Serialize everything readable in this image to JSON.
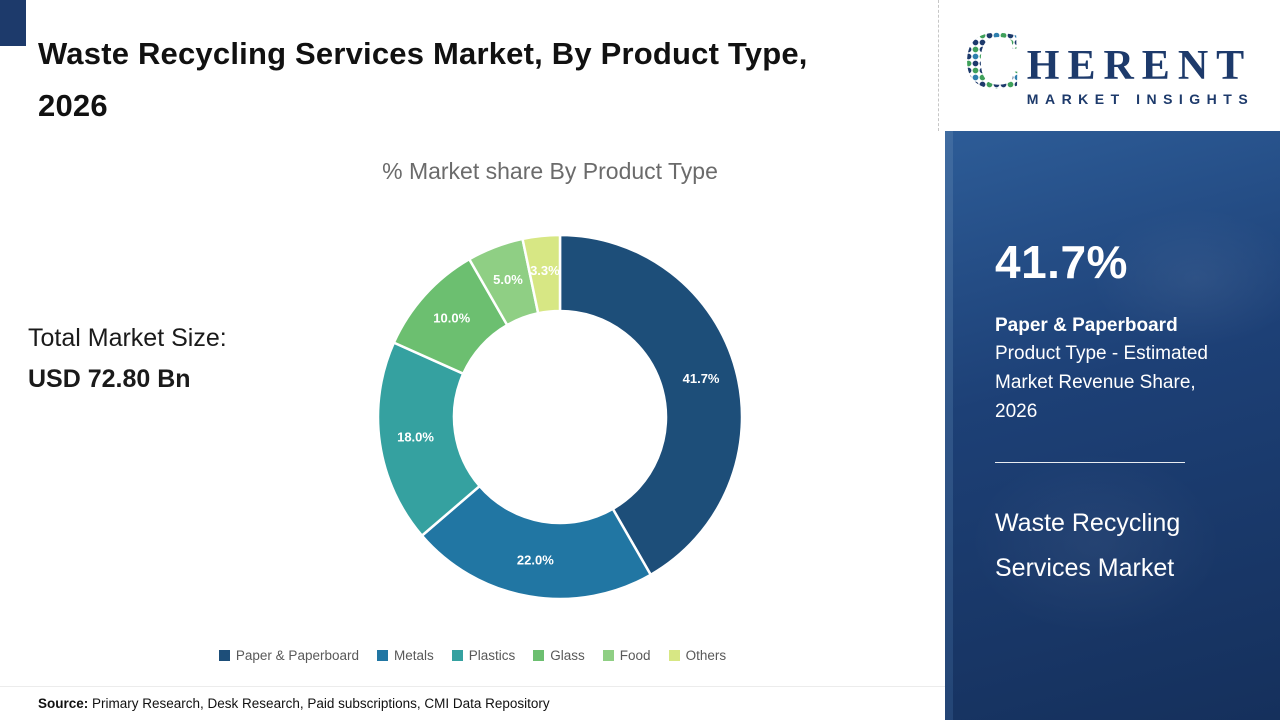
{
  "header": {
    "title": "Waste Recycling Services Market, By Product Type, 2026"
  },
  "stats": {
    "total_label": "Total Market Size:",
    "total_value": "USD 72.80 Bn"
  },
  "chart_data": {
    "type": "pie",
    "donut": true,
    "title": "% Market share By Product Type",
    "categories": [
      "Paper & Paperboard",
      "Metals",
      "Plastics",
      "Glass",
      "Food",
      "Others"
    ],
    "values": [
      41.7,
      22.0,
      18.0,
      10.0,
      5.0,
      3.3
    ],
    "slice_labels": [
      "41.7%",
      "22.0%",
      "18.0%",
      "10.0%",
      "5.0%",
      "3.3%"
    ],
    "colors": [
      "#1d4e79",
      "#2176a3",
      "#35a1a0",
      "#6cbf70",
      "#8fcf84",
      "#d7e784"
    ],
    "legend_position": "bottom",
    "start_angle_deg": 0,
    "direction": "clockwise"
  },
  "footer": {
    "source_label": "Source:",
    "source_text": " Primary Research, Desk Research, Paid subscriptions, CMI Data Repository"
  },
  "logo": {
    "word_initial": "C",
    "word_rest": "HERENT",
    "tagline": "MARKET INSIGHTS",
    "brand_navy": "#1d3a6b",
    "brand_green": "#3fa05a"
  },
  "panel": {
    "highlight_value": "41.7%",
    "highlight_title": "Paper & Paperboard",
    "highlight_desc": "Product Type - Estimated Market Revenue Share, 2026",
    "market_name": "Waste Recycling Services Market"
  }
}
